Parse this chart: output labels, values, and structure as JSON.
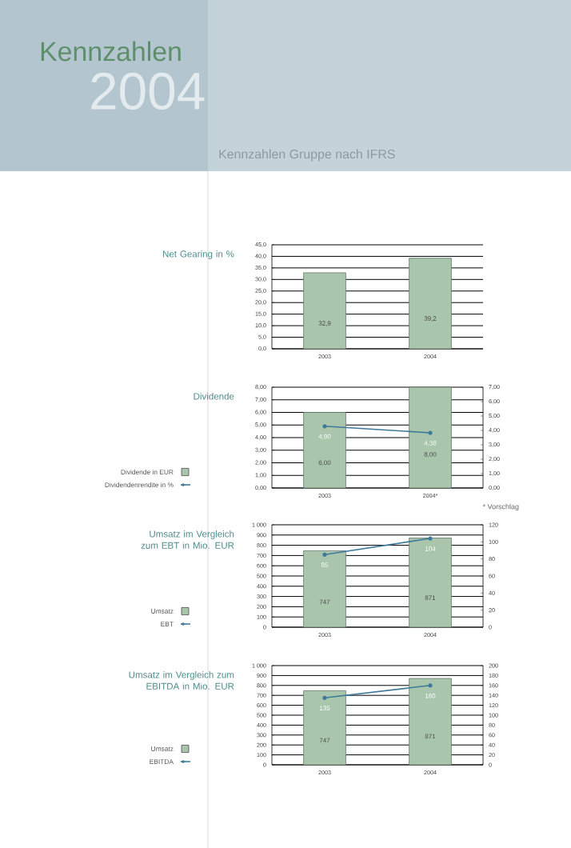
{
  "chart_data": [
    {
      "type": "other",
      "title": "Kennzahlen",
      "subtitle": "2004",
      "annotations": [
        "Kennzahlen Gruppe nach IFRS"
      ]
    },
    {
      "type": "bar",
      "title": "Net Gearing in %",
      "categories": [
        "2003",
        "2004"
      ],
      "values": [
        32.9,
        39.2
      ],
      "value_labels": [
        "32,9",
        "39,2"
      ],
      "color": "#a9c6ad",
      "grid": "y",
      "ylim": [
        0,
        45
      ],
      "yticks": [
        {
          "value": 0,
          "label": "0,0"
        },
        {
          "value": 5,
          "label": "5,0"
        },
        {
          "value": 10,
          "label": "10,0"
        },
        {
          "value": 15,
          "label": "15,0"
        },
        {
          "value": 20,
          "label": "20,0"
        },
        {
          "value": 25,
          "label": "25,0"
        },
        {
          "value": 30,
          "label": "30,0"
        },
        {
          "value": 35,
          "label": "35,0"
        },
        {
          "value": 40,
          "label": "40,0"
        },
        {
          "value": 45,
          "label": "45,0"
        }
      ]
    },
    {
      "type": "bar",
      "title": "Dividende",
      "categories": [
        "2003",
        "2004*"
      ],
      "grid": "y",
      "legend": "left",
      "annotations": [
        "* Vorschlag"
      ],
      "series": [
        {
          "name": "Dividende in EUR",
          "type": "bar",
          "color": "#a9c6ad",
          "values": [
            6.0,
            8.0
          ],
          "value_labels": [
            "6,00",
            "8,00"
          ]
        },
        {
          "name": "Dividendenrendite in %",
          "type": "line",
          "color": "#3f7a9a",
          "marker": "circle",
          "values": [
            4.9,
            4.38
          ],
          "value_labels": [
            "4,90",
            "4,38"
          ]
        }
      ],
      "ylim": [
        0,
        8
      ],
      "yticks": [
        {
          "value": 0,
          "label": "0,00"
        },
        {
          "value": 1,
          "label": "1,00"
        },
        {
          "value": 2,
          "label": "2,00"
        },
        {
          "value": 3,
          "label": "3,00"
        },
        {
          "value": 4,
          "label": "4,00"
        },
        {
          "value": 5,
          "label": "5,00"
        },
        {
          "value": 6,
          "label": "6,00"
        },
        {
          "value": 7,
          "label": "7,00"
        },
        {
          "value": 8,
          "label": "8,00"
        }
      ],
      "y2lim": [
        0,
        7
      ],
      "y2ticks": [
        {
          "value": 0,
          "label": "0,00"
        },
        {
          "value": 1,
          "label": "1,00"
        },
        {
          "value": 2,
          "label": "2,00"
        },
        {
          "value": 3,
          "label": "3,00"
        },
        {
          "value": 4,
          "label": "4,00"
        },
        {
          "value": 5,
          "label": "5,00"
        },
        {
          "value": 6,
          "label": "6,00"
        },
        {
          "value": 7,
          "label": "7,00"
        }
      ]
    },
    {
      "type": "bar",
      "title": "Umsatz im Vergleich zum EBT in Mio. EUR",
      "categories": [
        "2003",
        "2004"
      ],
      "grid": "y",
      "legend": "left",
      "series": [
        {
          "name": "Umsatz",
          "type": "bar",
          "color": "#a9c6ad",
          "values": [
            747,
            871
          ],
          "value_labels": [
            "747",
            "871"
          ]
        },
        {
          "name": "EBT",
          "type": "line",
          "axis": "y2",
          "color": "#3f7a9a",
          "marker": "circle",
          "values": [
            85,
            104
          ],
          "value_labels": [
            "85",
            "104"
          ]
        }
      ],
      "ylim": [
        0,
        1000
      ],
      "yticks": [
        0,
        100,
        200,
        300,
        400,
        500,
        600,
        700,
        800,
        900,
        {
          "value": 1000,
          "label": "1 000"
        }
      ],
      "y2lim": [
        0,
        120
      ],
      "y2ticks": [
        0,
        20,
        40,
        60,
        80,
        100,
        120
      ]
    },
    {
      "type": "bar",
      "title": "Umsatz im Vergleich zum EBITDA in Mio. EUR",
      "categories": [
        "2003",
        "2004"
      ],
      "grid": "y",
      "legend": "left",
      "series": [
        {
          "name": "Umsatz",
          "type": "bar",
          "color": "#a9c6ad",
          "values": [
            747,
            871
          ],
          "value_labels": [
            "747",
            "871"
          ]
        },
        {
          "name": "EBITDA",
          "type": "line",
          "axis": "y2",
          "color": "#3f7a9a",
          "marker": "circle",
          "values": [
            135,
            160
          ],
          "value_labels": [
            "135",
            "160"
          ]
        }
      ],
      "ylim": [
        0,
        1000
      ],
      "yticks": [
        0,
        100,
        200,
        300,
        400,
        500,
        600,
        700,
        800,
        900,
        {
          "value": 1000,
          "label": "1 000"
        }
      ],
      "y2lim": [
        0,
        200
      ],
      "y2ticks": [
        0,
        20,
        40,
        60,
        80,
        100,
        120,
        140,
        160,
        180,
        200
      ]
    }
  ]
}
